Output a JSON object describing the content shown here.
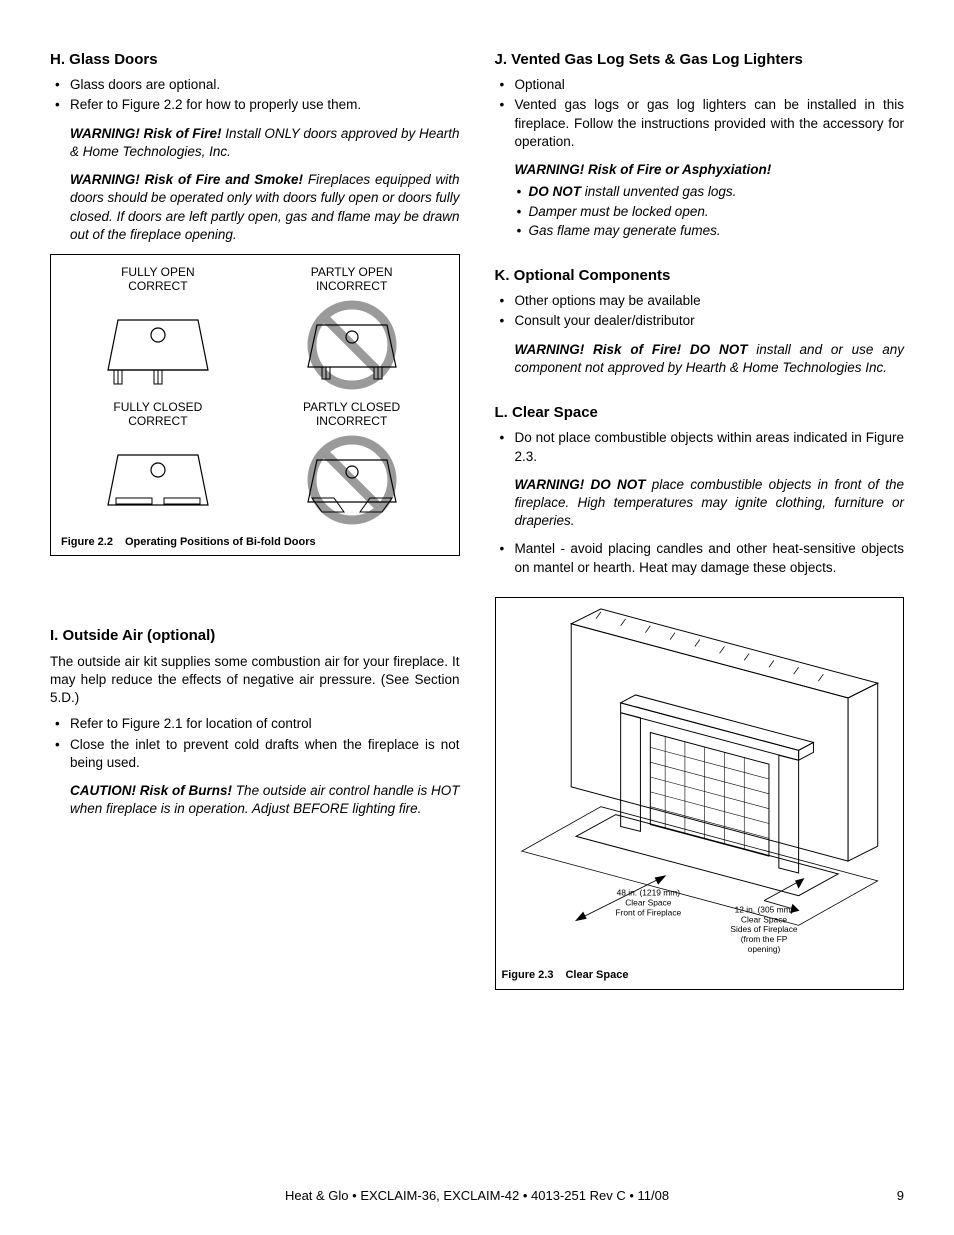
{
  "left": {
    "H": {
      "heading": "H. Glass Doors",
      "bullets": [
        "Glass doors are optional.",
        "Refer to Figure 2.2 for how to properly use them."
      ],
      "warn1_lead": "WARNING! Risk of Fire!",
      "warn1_text": " Install ONLY doors approved by Hearth & Home Technologies, Inc.",
      "warn2_lead": "WARNING! Risk of Fire and Smoke!",
      "warn2_text": " Fireplaces equipped with doors should be operated only with doors fully open or doors fully closed. If doors are left partly open, gas and flame may be drawn out of the fireplace opening.",
      "fig": {
        "row1": [
          {
            "l1": "FULLY OPEN",
            "l2": "CORRECT",
            "cross": false,
            "open": true
          },
          {
            "l1": "PARTLY OPEN",
            "l2": "INCORRECT",
            "cross": true,
            "open": true
          }
        ],
        "row2": [
          {
            "l1": "FULLY CLOSED",
            "l2": "CORRECT",
            "cross": false,
            "open": false
          },
          {
            "l1": "PARTLY CLOSED",
            "l2": "INCORRECT",
            "cross": true,
            "open": false
          }
        ],
        "figno": "Figure 2.2",
        "caption": "Operating Positions of Bi-fold Doors"
      }
    },
    "I": {
      "heading": "I.  Outside Air (optional)",
      "intro": "The outside air kit supplies some combustion air for your fireplace. It may help reduce the effects of negative air pressure. (See Section 5.D.)",
      "bullets": [
        "Refer to Figure 2.1 for location of control",
        "Close the inlet to prevent cold drafts when the fireplace is not being used."
      ],
      "warn_lead": "CAUTION! Risk of Burns!",
      "warn_text": " The outside air control handle is HOT when fireplace is in operation. Adjust BEFORE lighting fire."
    }
  },
  "right": {
    "J": {
      "heading": "J. Vented Gas Log Sets & Gas Log Lighters",
      "bullets": [
        "Optional",
        "Vented gas logs or gas log lighters can be installed in this fireplace. Follow the instructions provided with the accessory for operation."
      ],
      "warn_lead": "WARNING! Risk of Fire or Asphyxiation!",
      "warn_items": [
        "DO NOT install unvented gas logs.",
        "Damper must be locked open.",
        "Gas flame may generate fumes."
      ]
    },
    "K": {
      "heading": "K. Optional Components",
      "bullets": [
        "Other options may be available",
        "Consult your dealer/distributor"
      ],
      "warn_lead": "WARNING! Risk of Fire! DO NOT",
      "warn_text": " install and or use any component not approved by Hearth & Home Technologies Inc."
    },
    "L": {
      "heading": "L. Clear Space",
      "bullet1": "Do not place combustible objects within areas indicated in Figure 2.3.",
      "warn_lead": "WARNING! DO NOT",
      "warn_text": " place combustible objects in front of the fireplace. High temperatures may ignite clothing, furniture or draperies.",
      "bullet2": "Mantel - avoid placing candles and other heat-sensitive objects on mantel or hearth. Heat may damage these objects.",
      "fig": {
        "front_l1": "48 in. (1219 mm)",
        "front_l2": "Clear Space",
        "front_l3": "Front of Fireplace",
        "side_l1": "12 in.  (305 mm)",
        "side_l2": "Clear Space",
        "side_l3": "Sides of Fireplace",
        "side_l4": "(from the FP",
        "side_l5": "opening)",
        "figno": "Figure 2.3",
        "caption": "Clear Space"
      }
    }
  },
  "footer": {
    "center": "Heat & Glo • EXCLAIM-36, EXCLAIM-42 • 4013-251 Rev C • 11/08",
    "page": "9"
  },
  "style": {
    "gray": "#9a9a9a",
    "black": "#000000"
  }
}
